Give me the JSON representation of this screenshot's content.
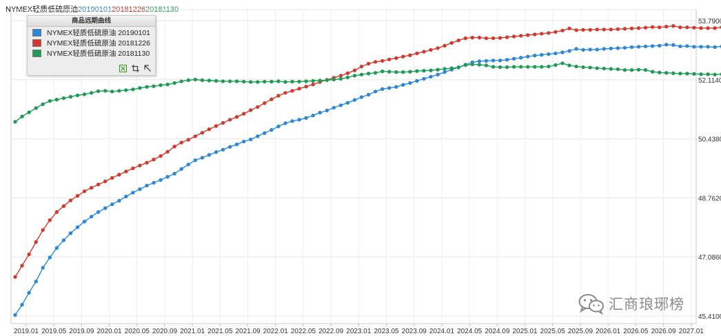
{
  "title": {
    "name": "NYMEX轻质低硫原油",
    "dates": [
      {
        "text": "20190101",
        "color": "#2878c8"
      },
      {
        "text": "20181226",
        "color": "#cc2a22"
      },
      {
        "text": "20181130",
        "color": "#1c9a50"
      }
    ]
  },
  "legend": {
    "header": "商品远期曲线",
    "tools": [
      "select-icon",
      "crop-icon",
      "resize-icon"
    ]
  },
  "watermark": {
    "text": "汇商琅琊榜",
    "icon": "wechat-icon"
  },
  "chart_data": {
    "type": "line",
    "title": "",
    "xlabel": "",
    "ylabel": "",
    "ylim": [
      45.41,
      53.79
    ],
    "yticks": [
      "53.7900",
      "52.1140",
      "50.4380",
      "48.7620",
      "47.0860",
      "45.4100"
    ],
    "ytick_values": [
      53.79,
      52.114,
      50.438,
      48.762,
      47.086,
      45.41
    ],
    "xticks": [
      "2019.01",
      "2019.05",
      "2019.09",
      "2020.01",
      "2020.05",
      "2020.09",
      "2021.01",
      "2021.05",
      "2021.09",
      "2022.01",
      "2022.05",
      "2022.09",
      "2023.01",
      "2023.05",
      "2023.09",
      "2024.01",
      "2024.05",
      "2024.09",
      "2025.01",
      "2025.05",
      "2025.09",
      "2026.01",
      "2026.05",
      "2026.09",
      "2027.01"
    ],
    "x_start": "2019.02",
    "x_step": "1 month",
    "grid": true,
    "legend_position": "top-left",
    "series": [
      {
        "name": "NYMEX轻质低硫原油 20190101",
        "color": "#2b88d8",
        "values": [
          45.44,
          45.73,
          46.07,
          46.39,
          46.78,
          47.07,
          47.34,
          47.56,
          47.76,
          47.93,
          48.09,
          48.23,
          48.36,
          48.47,
          48.58,
          48.68,
          48.8,
          48.91,
          49.01,
          49.11,
          49.19,
          49.27,
          49.36,
          49.45,
          49.58,
          49.71,
          49.83,
          49.9,
          49.98,
          50.06,
          50.13,
          50.21,
          50.28,
          50.36,
          50.42,
          50.51,
          50.6,
          50.69,
          50.79,
          50.88,
          50.94,
          50.98,
          51.03,
          51.1,
          51.18,
          51.24,
          51.32,
          51.39,
          51.46,
          51.54,
          51.62,
          51.69,
          51.78,
          51.85,
          51.88,
          51.91,
          51.97,
          52.02,
          52.08,
          52.14,
          52.2,
          52.26,
          52.33,
          52.4,
          52.47,
          52.54,
          52.61,
          52.64,
          52.65,
          52.66,
          52.66,
          52.68,
          52.71,
          52.74,
          52.77,
          52.8,
          52.82,
          52.84,
          52.86,
          52.89,
          52.93,
          52.99,
          52.96,
          52.97,
          52.97,
          52.99,
          53.0,
          53.01,
          53.02,
          53.04,
          53.05,
          53.06,
          53.07,
          53.08,
          53.11,
          53.1,
          53.06,
          53.07,
          53.05,
          53.05,
          53.05,
          53.04,
          53.06,
          53.06,
          53.07,
          53.06,
          53.07,
          53.08,
          53.05,
          53.03,
          53.03
        ]
      },
      {
        "name": "NYMEX轻质低硫原油 20181226",
        "color": "#d23a2e",
        "values": [
          46.52,
          46.84,
          47.16,
          47.51,
          47.85,
          48.13,
          48.36,
          48.53,
          48.69,
          48.82,
          48.95,
          49.05,
          49.14,
          49.23,
          49.33,
          49.42,
          49.51,
          49.6,
          49.68,
          49.76,
          49.85,
          49.95,
          50.07,
          50.22,
          50.33,
          50.41,
          50.51,
          50.61,
          50.71,
          50.8,
          50.89,
          50.98,
          51.06,
          51.15,
          51.25,
          51.34,
          51.45,
          51.56,
          51.66,
          51.74,
          51.8,
          51.86,
          51.92,
          51.98,
          52.05,
          52.11,
          52.17,
          52.23,
          52.3,
          52.38,
          52.49,
          52.57,
          52.62,
          52.65,
          52.69,
          52.73,
          52.77,
          52.81,
          52.86,
          52.91,
          52.96,
          53.01,
          53.08,
          53.16,
          53.23,
          53.29,
          53.31,
          53.31,
          53.29,
          53.29,
          53.3,
          53.32,
          53.34,
          53.36,
          53.38,
          53.4,
          53.42,
          53.44,
          53.47,
          53.51,
          53.57,
          53.52,
          53.53,
          53.53,
          53.54,
          53.54,
          53.54,
          53.55,
          53.56,
          53.57,
          53.58,
          53.59,
          53.61,
          53.6,
          53.62,
          53.64,
          53.6,
          53.6,
          53.59,
          53.58,
          53.58,
          53.58,
          53.6,
          53.59,
          53.59,
          53.6,
          53.6,
          53.62,
          53.59,
          53.56,
          53.56
        ]
      },
      {
        "name": "NYMEX轻质低硫原油 20181130",
        "color": "#1e9c56",
        "values": [
          50.92,
          51.07,
          51.19,
          51.31,
          51.42,
          51.51,
          51.55,
          51.59,
          51.63,
          51.67,
          51.7,
          51.74,
          51.79,
          51.8,
          51.78,
          51.8,
          51.82,
          51.84,
          51.88,
          51.91,
          51.93,
          51.96,
          51.98,
          52.02,
          52.07,
          52.1,
          52.12,
          52.1,
          52.09,
          52.08,
          52.07,
          52.07,
          52.07,
          52.06,
          52.05,
          52.05,
          52.06,
          52.06,
          52.07,
          52.05,
          52.06,
          52.06,
          52.07,
          52.08,
          52.09,
          52.1,
          52.12,
          52.14,
          52.18,
          52.23,
          52.26,
          52.29,
          52.31,
          52.35,
          52.34,
          52.33,
          52.33,
          52.34,
          52.36,
          52.37,
          52.38,
          52.4,
          52.42,
          52.44,
          52.46,
          52.53,
          52.55,
          52.54,
          52.52,
          52.48,
          52.47,
          52.47,
          52.48,
          52.48,
          52.48,
          52.48,
          52.48,
          52.49,
          52.53,
          52.58,
          52.52,
          52.49,
          52.47,
          52.46,
          52.44,
          52.43,
          52.42,
          52.41,
          52.39,
          52.39,
          52.4,
          52.39,
          52.34,
          52.32,
          52.31,
          52.3,
          52.29,
          52.29,
          52.28,
          52.27,
          52.27,
          52.26,
          52.27,
          52.27,
          52.25,
          52.25,
          52.23,
          52.23,
          52.24,
          52.21,
          52.19
        ]
      }
    ]
  }
}
